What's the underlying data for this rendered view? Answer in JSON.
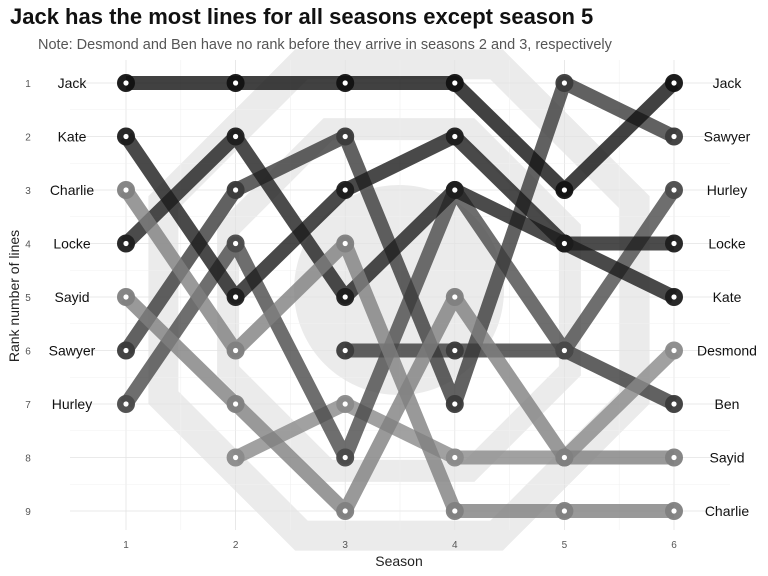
{
  "title": "Jack has the most lines for all seasons except season 5",
  "subtitle": "Note: Desmond and Ben have no rank before they arrive in seasons 2 and 3, respectively",
  "chart_data": {
    "type": "line",
    "xlabel": "Season",
    "ylabel": "Rank number of lines",
    "x": [
      1,
      2,
      3,
      4,
      5,
      6
    ],
    "xlim": [
      1,
      6
    ],
    "ylim": [
      1,
      9
    ],
    "y_reversed": true,
    "y_ticks": [
      "1",
      "2",
      "3",
      "4",
      "5",
      "6",
      "7",
      "8",
      "9"
    ],
    "x_ticks": [
      "1",
      "2",
      "3",
      "4",
      "5",
      "6"
    ],
    "grid": true,
    "left_labels": [
      "Jack",
      "Kate",
      "Charlie",
      "Locke",
      "Sayid",
      "Sawyer",
      "Hurley"
    ],
    "right_labels": [
      "Jack",
      "Sawyer",
      "Hurley",
      "Locke",
      "Kate",
      "Desmond",
      "Ben",
      "Sayid",
      "Charlie"
    ],
    "series": [
      {
        "name": "Jack",
        "color": "#111111",
        "values": [
          1,
          1,
          1,
          1,
          3,
          1
        ]
      },
      {
        "name": "Kate",
        "color": "#1c1c1c",
        "values": [
          2,
          5,
          3,
          2,
          4,
          5
        ]
      },
      {
        "name": "Charlie",
        "color": "#7f7f7f",
        "values": [
          3,
          6,
          4,
          9,
          9,
          9
        ]
      },
      {
        "name": "Locke",
        "color": "#1e1e1e",
        "values": [
          4,
          2,
          5,
          3,
          4,
          4
        ]
      },
      {
        "name": "Sayid",
        "color": "#808080",
        "values": [
          5,
          7,
          9,
          5,
          8,
          8
        ]
      },
      {
        "name": "Sawyer",
        "color": "#3a3a3a",
        "values": [
          6,
          3,
          2,
          7,
          1,
          2
        ]
      },
      {
        "name": "Hurley",
        "color": "#4a4a4a",
        "values": [
          7,
          4,
          8,
          3,
          6,
          3
        ]
      },
      {
        "name": "Desmond",
        "color": "#8a8a8a",
        "values": [
          null,
          8,
          7,
          8,
          8,
          6
        ]
      },
      {
        "name": "Ben",
        "color": "#3a3a3a",
        "values": [
          null,
          null,
          6,
          6,
          6,
          7
        ]
      }
    ]
  }
}
